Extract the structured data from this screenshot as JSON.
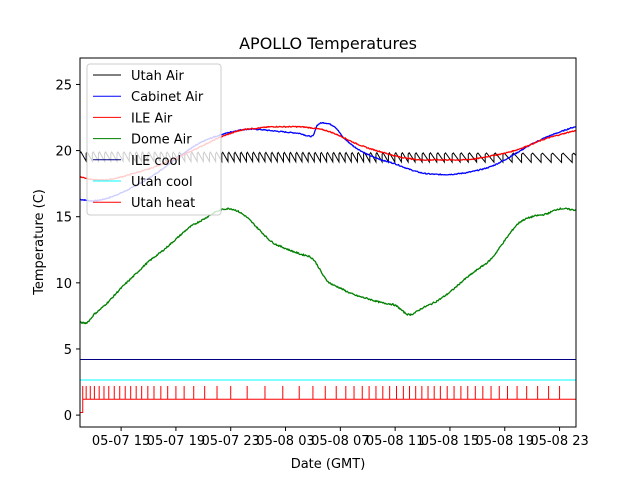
{
  "chart_data": {
    "type": "line",
    "title": "APOLLO Temperatures",
    "xlabel": "Date (GMT)",
    "ylabel": "Temperature (C)",
    "x_unit": "hours since 05-07 12:00 GMT",
    "xlim": [
      0,
      36.2
    ],
    "ylim": [
      -0.9,
      27
    ],
    "grid": false,
    "legend_position": "upper-left",
    "x_ticks": [
      {
        "x": 3,
        "label": "05-07 15"
      },
      {
        "x": 7,
        "label": "05-07 19"
      },
      {
        "x": 11,
        "label": "05-07 23"
      },
      {
        "x": 15,
        "label": "05-08 03"
      },
      {
        "x": 19,
        "label": "05-08 07"
      },
      {
        "x": 23,
        "label": "05-08 11"
      },
      {
        "x": 27,
        "label": "05-08 15"
      },
      {
        "x": 31,
        "label": "05-08 19"
      },
      {
        "x": 35,
        "label": "05-08 23"
      }
    ],
    "y_ticks": [
      {
        "y": 0,
        "label": "0"
      },
      {
        "y": 5,
        "label": "5"
      },
      {
        "y": 10,
        "label": "10"
      },
      {
        "y": 15,
        "label": "15"
      },
      {
        "y": 20,
        "label": "20"
      },
      {
        "y": 25,
        "label": "25"
      }
    ],
    "series": [
      {
        "name": "Utah Air",
        "color": "#000000",
        "style": "sawtooth",
        "x": [
          0,
          36.2
        ],
        "low": [
          19.2,
          19.1
        ],
        "high": [
          19.8,
          19.7
        ],
        "period_hours": [
          0.45,
          0.8
        ]
      },
      {
        "name": "Cabinet Air",
        "color": "#0000ff",
        "x": [
          0,
          1,
          2,
          3,
          4,
          5,
          6,
          7,
          8,
          9,
          10,
          11,
          12,
          13,
          14,
          15,
          16,
          17,
          17.3,
          17.8,
          18.6,
          19.2,
          20,
          21,
          22,
          23,
          24,
          25,
          26,
          27,
          28,
          29,
          30,
          31,
          32,
          33,
          34,
          35,
          36.2
        ],
        "values": [
          16.3,
          16.2,
          16.4,
          16.8,
          17.3,
          17.9,
          18.6,
          19.4,
          20.1,
          20.7,
          21.1,
          21.4,
          21.6,
          21.6,
          21.5,
          21.4,
          21.3,
          21.1,
          21.9,
          22.1,
          21.8,
          21.0,
          20.3,
          19.7,
          19.3,
          19.0,
          18.6,
          18.3,
          18.2,
          18.2,
          18.3,
          18.5,
          18.8,
          19.3,
          19.9,
          20.5,
          21.0,
          21.4,
          21.8
        ]
      },
      {
        "name": "ILE Air",
        "color": "#ff0000",
        "x": [
          0,
          1,
          2,
          3,
          4,
          5,
          6,
          7,
          8,
          9,
          10,
          11,
          12,
          13,
          14,
          15,
          16,
          17,
          18,
          19,
          20,
          21,
          22,
          23,
          24,
          25,
          26,
          27,
          28,
          29,
          30,
          31,
          32,
          33,
          34,
          35,
          36.2
        ],
        "values": [
          18.0,
          17.8,
          17.8,
          18.0,
          18.3,
          18.6,
          19.0,
          19.4,
          19.9,
          20.4,
          20.9,
          21.3,
          21.6,
          21.7,
          21.8,
          21.8,
          21.8,
          21.7,
          21.5,
          21.1,
          20.6,
          20.2,
          19.9,
          19.6,
          19.4,
          19.3,
          19.3,
          19.3,
          19.3,
          19.4,
          19.6,
          19.8,
          20.1,
          20.5,
          20.9,
          21.2,
          21.5
        ]
      },
      {
        "name": "Dome Air",
        "color": "#008000",
        "x": [
          0,
          0.5,
          1,
          2,
          3,
          4,
          5,
          6,
          7,
          8,
          9,
          10,
          11,
          12,
          13,
          14,
          15,
          16,
          17,
          18,
          19,
          20,
          21,
          22,
          23,
          24,
          25,
          26,
          27,
          28,
          29,
          30,
          31,
          32,
          33,
          34,
          35,
          36.2
        ],
        "values": [
          7.0,
          7.0,
          7.6,
          8.5,
          9.6,
          10.6,
          11.6,
          12.4,
          13.3,
          14.2,
          14.8,
          15.4,
          15.6,
          15.1,
          14.1,
          13.1,
          12.6,
          12.2,
          11.8,
          10.2,
          9.6,
          9.1,
          8.8,
          8.5,
          8.3,
          7.6,
          8.1,
          8.6,
          9.3,
          10.2,
          11.0,
          11.8,
          13.2,
          14.5,
          15.0,
          15.2,
          15.6,
          15.5
        ]
      },
      {
        "name": "ILE cool",
        "color": "#000080",
        "x": [
          0,
          36.2
        ],
        "values": [
          4.2,
          4.2
        ]
      },
      {
        "name": "Utah cool",
        "color": "#00ffff",
        "x": [
          0,
          36.2
        ],
        "values": [
          2.65,
          2.65
        ]
      },
      {
        "name": "Utah heat",
        "color": "#ff0000",
        "style": "pulses",
        "baseline": 1.2,
        "pulse_value": 2.2,
        "initial_value": 0.2,
        "pulse_x": [
          0.2,
          0.45,
          0.75,
          1.05,
          1.4,
          1.75,
          2.1,
          2.5,
          2.9,
          3.3,
          3.7,
          4.1,
          4.5,
          4.95,
          5.4,
          5.9,
          6.4,
          7.0,
          7.6,
          8.3,
          9.1,
          10.0,
          11.0,
          12.2,
          13.5,
          14.8,
          16.0,
          17.0,
          17.9,
          18.7,
          19.4,
          20.0,
          20.6,
          21.1,
          21.6,
          22.1,
          22.6,
          23.1,
          23.6,
          24.05,
          24.5,
          24.95,
          25.4,
          25.85,
          26.3,
          26.8,
          27.3,
          27.8,
          28.3,
          28.85,
          29.4,
          30.0,
          30.6,
          31.2,
          31.9,
          32.6,
          33.4,
          34.2,
          35.0
        ]
      }
    ]
  }
}
